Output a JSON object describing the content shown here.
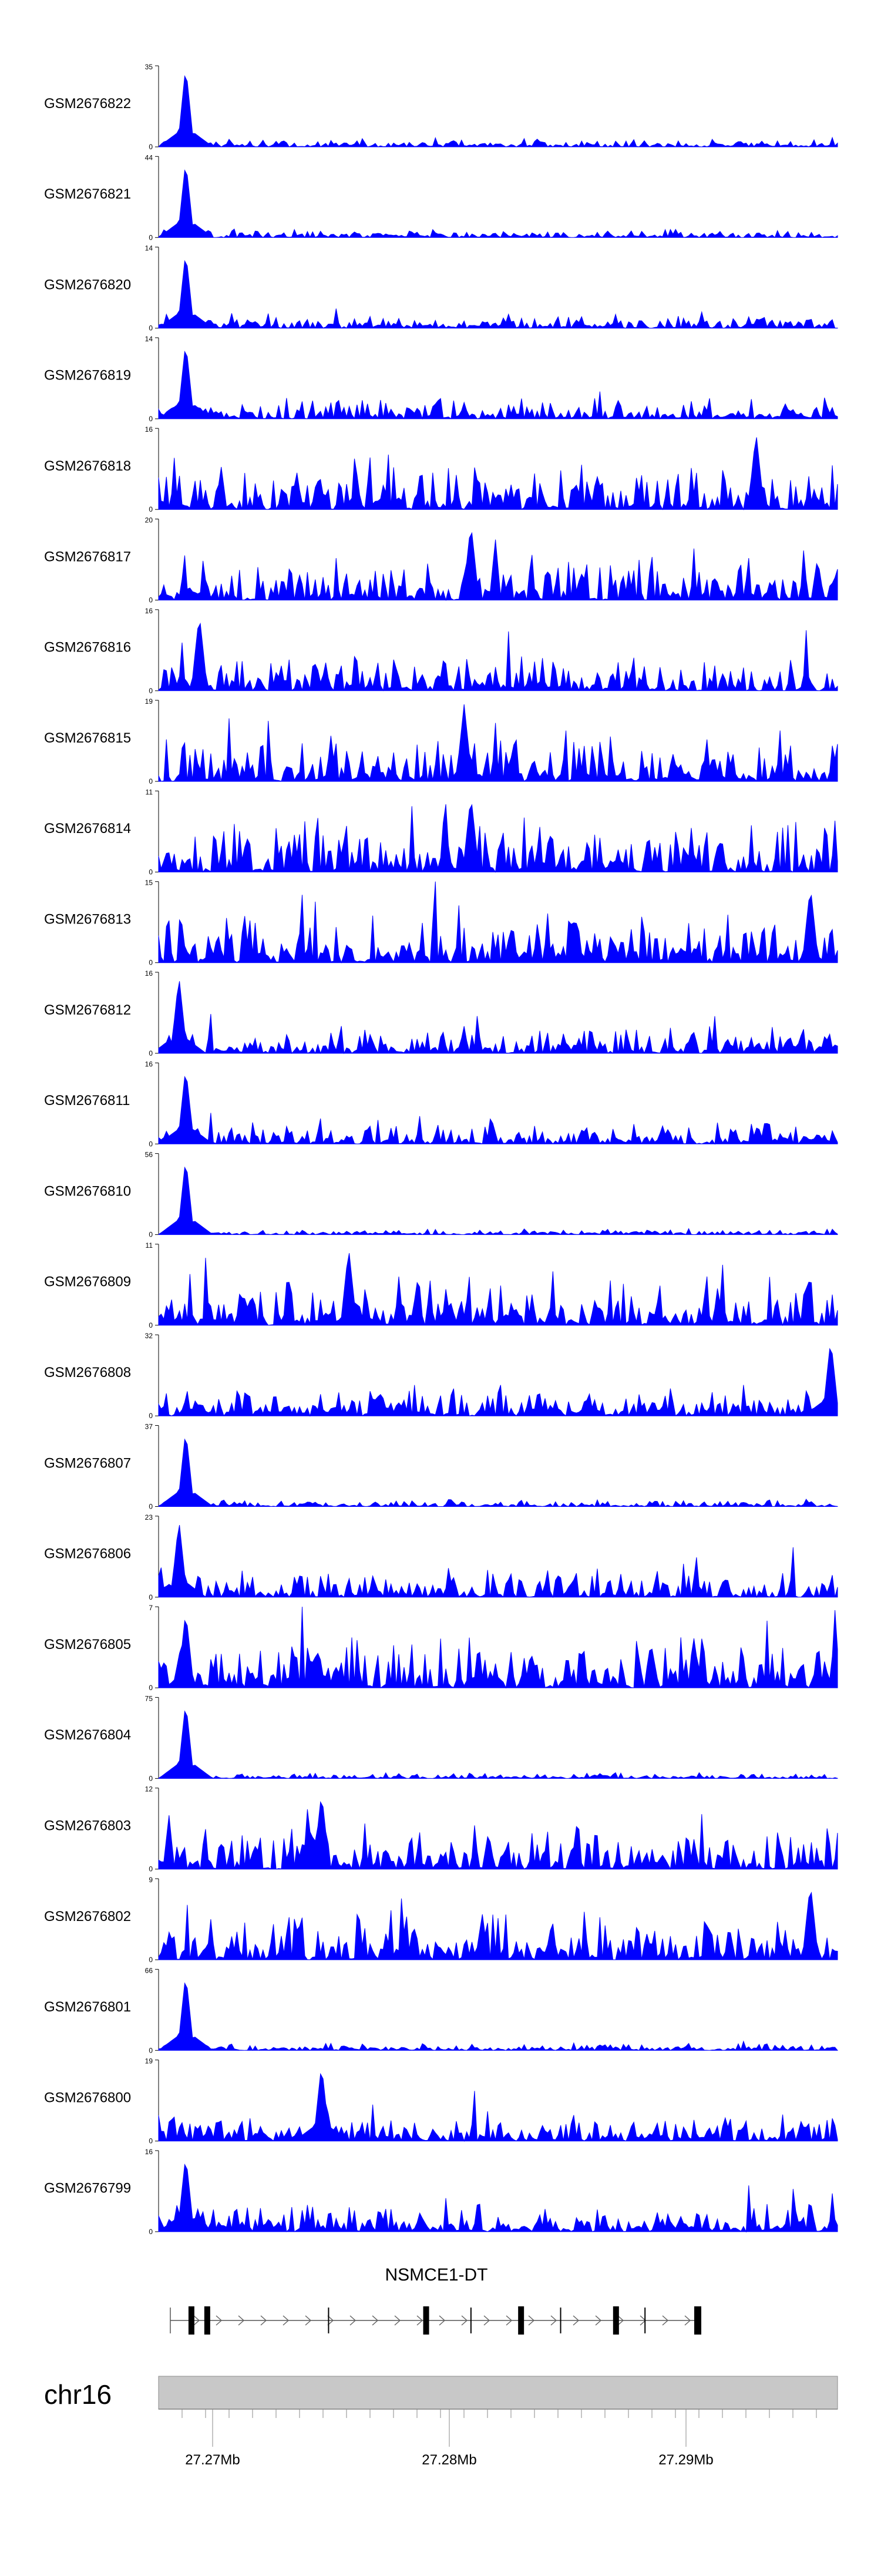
{
  "chart_data": {
    "type": "area",
    "title": "",
    "fill_color": "#0000ff",
    "tracks": [
      {
        "label": "GSM2676822",
        "ymax": 35,
        "ymin": 0,
        "peak_at": 0.04,
        "peak_height": 1.0,
        "noise": 0.12,
        "seed": 22
      },
      {
        "label": "GSM2676821",
        "ymax": 44,
        "ymin": 0,
        "peak_at": 0.04,
        "peak_height": 0.95,
        "noise": 0.12,
        "seed": 21
      },
      {
        "label": "GSM2676820",
        "ymax": 14,
        "ymin": 0,
        "peak_at": 0.04,
        "peak_height": 0.95,
        "noise": 0.2,
        "seed": 20
      },
      {
        "label": "GSM2676819",
        "ymax": 14,
        "ymin": 0,
        "peak_at": 0.04,
        "peak_height": 0.95,
        "noise": 0.3,
        "seed": 19
      },
      {
        "label": "GSM2676818",
        "ymax": 16,
        "ymin": 0,
        "peak_at": 0.88,
        "peak_height": 0.95,
        "noise": 0.6,
        "seed": 18
      },
      {
        "label": "GSM2676817",
        "ymax": 20,
        "ymin": 0,
        "peak_at": 0.46,
        "peak_height": 0.95,
        "noise": 0.6,
        "seed": 17
      },
      {
        "label": "GSM2676816",
        "ymax": 16,
        "ymin": 0,
        "peak_at": 0.06,
        "peak_height": 0.95,
        "noise": 0.5,
        "seed": 16
      },
      {
        "label": "GSM2676815",
        "ymax": 19,
        "ymin": 0,
        "peak_at": 0.45,
        "peak_height": 0.95,
        "noise": 0.6,
        "seed": 15
      },
      {
        "label": "GSM2676814",
        "ymax": 11,
        "ymin": 0,
        "peak_at": 0.46,
        "peak_height": 0.95,
        "noise": 0.7,
        "seed": 14
      },
      {
        "label": "GSM2676813",
        "ymax": 15,
        "ymin": 0,
        "peak_at": 0.96,
        "peak_height": 0.95,
        "noise": 0.65,
        "seed": 13
      },
      {
        "label": "GSM2676812",
        "ymax": 16,
        "ymin": 0,
        "peak_at": 0.03,
        "peak_height": 0.95,
        "noise": 0.35,
        "seed": 12
      },
      {
        "label": "GSM2676811",
        "ymax": 16,
        "ymin": 0,
        "peak_at": 0.04,
        "peak_height": 0.95,
        "noise": 0.3,
        "seed": 11
      },
      {
        "label": "GSM2676810",
        "ymax": 56,
        "ymin": 0,
        "peak_at": 0.04,
        "peak_height": 0.95,
        "noise": 0.08,
        "seed": 10
      },
      {
        "label": "GSM2676809",
        "ymax": 11,
        "ymin": 0,
        "peak_at": 0.28,
        "peak_height": 0.95,
        "noise": 0.65,
        "seed": 9
      },
      {
        "label": "GSM2676808",
        "ymax": 32,
        "ymin": 0,
        "peak_at": 0.99,
        "peak_height": 0.95,
        "noise": 0.4,
        "seed": 8
      },
      {
        "label": "GSM2676807",
        "ymax": 37,
        "ymin": 0,
        "peak_at": 0.04,
        "peak_height": 0.95,
        "noise": 0.1,
        "seed": 7
      },
      {
        "label": "GSM2676806",
        "ymax": 23,
        "ymin": 0,
        "peak_at": 0.03,
        "peak_height": 0.95,
        "noise": 0.4,
        "seed": 6
      },
      {
        "label": "GSM2676805",
        "ymax": 7,
        "ymin": 0,
        "peak_at": 0.04,
        "peak_height": 0.95,
        "noise": 0.7,
        "seed": 5
      },
      {
        "label": "GSM2676804",
        "ymax": 75,
        "ymin": 0,
        "peak_at": 0.04,
        "peak_height": 0.95,
        "noise": 0.08,
        "seed": 4
      },
      {
        "label": "GSM2676803",
        "ymax": 12,
        "ymin": 0,
        "peak_at": 0.24,
        "peak_height": 0.95,
        "noise": 0.55,
        "seed": 3
      },
      {
        "label": "GSM2676802",
        "ymax": 9,
        "ymin": 0,
        "peak_at": 0.96,
        "peak_height": 0.95,
        "noise": 0.65,
        "seed": 2
      },
      {
        "label": "GSM2676801",
        "ymax": 66,
        "ymin": 0,
        "peak_at": 0.04,
        "peak_height": 0.95,
        "noise": 0.1,
        "seed": 1
      },
      {
        "label": "GSM2676800",
        "ymax": 19,
        "ymin": 0,
        "peak_at": 0.24,
        "peak_height": 0.95,
        "noise": 0.4,
        "seed": 23
      },
      {
        "label": "GSM2676799",
        "ymax": 16,
        "ymin": 0,
        "peak_at": 0.04,
        "peak_height": 0.95,
        "noise": 0.4,
        "seed": 24
      }
    ],
    "gene": {
      "name": "NSMCE1-DT",
      "exons": [
        0.04,
        0.07,
        0.485,
        0.665,
        0.845
      ]
    },
    "chromosome": {
      "label": "chr16",
      "ticks": [
        "27.27Mb",
        "27.28Mb",
        "27.29Mb"
      ]
    }
  }
}
